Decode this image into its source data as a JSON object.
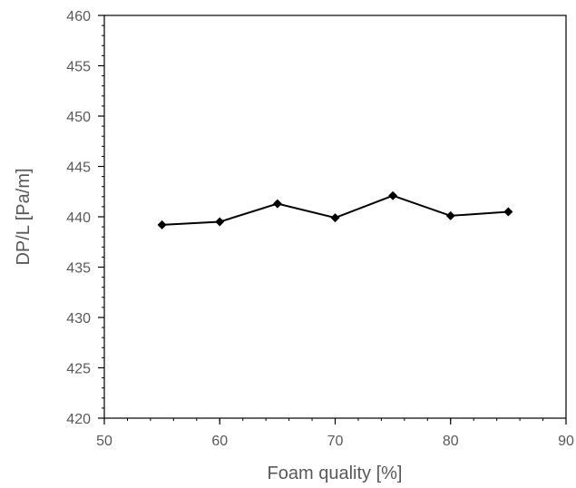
{
  "chart_data": {
    "type": "line",
    "title": "",
    "xlabel": "Foam quality [%]",
    "ylabel": "DP/L [Pa/m]",
    "xlim": [
      50,
      90
    ],
    "ylim": [
      420,
      460
    ],
    "x_ticks": [
      50,
      60,
      70,
      80,
      90
    ],
    "y_ticks": [
      420,
      425,
      430,
      435,
      440,
      445,
      450,
      455,
      460
    ],
    "x_minor_step": 2,
    "y_minor_step": 1,
    "grid": false,
    "marker": "diamond",
    "series_color": "#000000",
    "series": [
      {
        "x": [
          55,
          60,
          65,
          70,
          75,
          80,
          85
        ],
        "y": [
          439.2,
          439.5,
          441.3,
          439.9,
          442.1,
          440.1,
          440.5
        ]
      }
    ]
  }
}
